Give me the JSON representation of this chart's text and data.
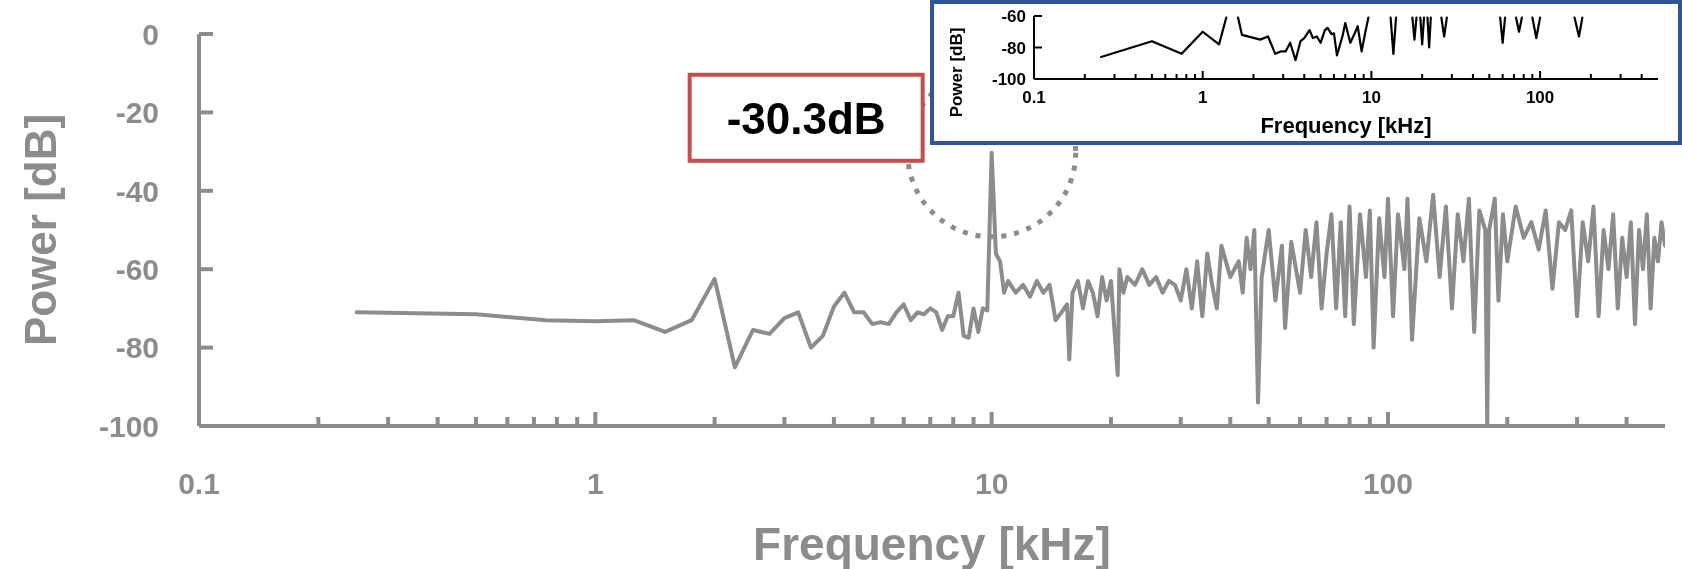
{
  "chart_data": [
    {
      "type": "line",
      "xlabel": "Frequency [kHz]",
      "ylabel": "Power [dB]",
      "log": "x",
      "x": [
        0.25,
        0.5,
        0.75,
        1,
        1.25,
        1.5,
        1.75,
        2,
        2.25,
        2.5,
        2.75,
        3,
        3.25,
        3.5,
        3.75,
        4,
        4.25,
        4.5,
        4.75,
        5,
        5.25,
        5.5,
        5.75,
        6,
        6.25,
        6.5,
        6.75,
        7,
        7.25,
        7.5,
        7.75,
        8,
        8.25,
        8.5,
        8.75,
        9,
        9.25,
        9.5,
        9.75,
        10,
        10.25,
        10.5,
        10.75,
        11,
        11.5,
        12,
        12.5,
        13,
        13.5,
        14,
        14.5,
        15,
        15.5,
        15.7,
        16,
        16.5,
        17,
        17.5,
        18,
        18.5,
        19,
        19.5,
        20,
        20.8,
        21,
        21.5,
        22,
        23,
        24,
        25,
        26,
        27,
        28,
        29,
        30,
        31,
        32,
        33,
        34,
        35,
        36,
        37,
        38,
        40,
        42,
        43,
        44,
        45,
        46,
        47,
        48,
        50,
        52,
        54,
        55,
        57,
        60,
        62,
        64,
        66,
        68,
        70,
        72,
        74,
        76,
        78,
        80,
        82,
        85,
        88,
        90,
        92,
        95,
        98,
        100,
        103,
        106,
        110,
        112,
        115,
        120,
        125,
        130,
        135,
        140,
        145,
        150,
        155,
        160,
        165,
        170,
        176,
        178,
        180,
        186,
        190,
        195,
        200,
        210,
        220,
        230,
        240,
        250,
        260,
        270,
        280,
        290,
        300,
        310,
        320,
        330,
        340,
        350,
        360,
        370,
        380,
        390,
        400,
        410,
        420,
        430,
        440,
        450,
        460,
        470,
        480,
        490,
        500
      ],
      "series": [
        {
          "color": "#8c8c8c",
          "values": [
            -71,
            -71.5,
            -73,
            -73.3,
            -73,
            -76,
            -73,
            -62.5,
            -85,
            -75.5,
            -76.5,
            -72.5,
            -71,
            -80,
            -77,
            -69.5,
            -66,
            -71,
            -71,
            -74,
            -73.5,
            -74,
            -71,
            -69,
            -73,
            -71,
            -71.5,
            -70,
            -71,
            -75.5,
            -72,
            -72,
            -66,
            -77,
            -77.5,
            -70,
            -76,
            -70,
            -70.5,
            -30.3,
            -56,
            -58,
            -66,
            -63,
            -66,
            -64,
            -67,
            -63,
            -66,
            -64,
            -73,
            -71,
            -69,
            -83,
            -66,
            -63,
            -70,
            -63,
            -66,
            -72,
            -62,
            -68,
            -63,
            -87,
            -60,
            -66,
            -62,
            -64,
            -60,
            -64,
            -62,
            -66,
            -63,
            -64,
            -68,
            -60,
            -70,
            -58,
            -72,
            -56,
            -64,
            -70,
            -54,
            -62,
            -58,
            -66,
            -52,
            -60,
            -50,
            -94,
            -62,
            -50,
            -68,
            -54,
            -75,
            -53,
            -66,
            -50,
            -62,
            -48,
            -70,
            -56,
            -46,
            -70,
            -48,
            -72,
            -44,
            -74,
            -46,
            -62,
            -45,
            -80,
            -47,
            -62,
            -42,
            -72,
            -46,
            -60,
            -42,
            -78,
            -47,
            -58,
            -41,
            -62,
            -44,
            -70,
            -46,
            -58,
            -42,
            -76,
            -45,
            -50,
            -100,
            -50,
            -42,
            -68,
            -46,
            -58,
            -44,
            -52,
            -48,
            -55,
            -45,
            -65,
            -48,
            -50,
            -45,
            -72,
            -48,
            -58,
            -44,
            -72,
            -50,
            -60,
            -46,
            -70,
            -52,
            -62,
            -48,
            -74,
            -50,
            -60,
            -46,
            -70,
            -52,
            -58,
            -48,
            -54
          ]
        }
      ],
      "xlim": [
        0.1,
        500
      ],
      "xticks": [
        0.1,
        {
          "value": 0.2,
          "label": null
        },
        {
          "value": 0.3,
          "label": null
        },
        {
          "value": 0.4,
          "label": null
        },
        {
          "value": 0.5,
          "label": null
        },
        {
          "value": 0.6,
          "label": null
        },
        {
          "value": 0.7,
          "label": null
        },
        {
          "value": 0.8,
          "label": null
        },
        {
          "value": 0.9,
          "label": null
        },
        1,
        {
          "value": 2,
          "label": null
        },
        {
          "value": 3,
          "label": null
        },
        {
          "value": 4,
          "label": null
        },
        {
          "value": 5,
          "label": null
        },
        {
          "value": 6,
          "label": null
        },
        {
          "value": 7,
          "label": null
        },
        {
          "value": 8,
          "label": null
        },
        {
          "value": 9,
          "label": null
        },
        10,
        {
          "value": 20,
          "label": null
        },
        {
          "value": 30,
          "label": null
        },
        {
          "value": 40,
          "label": null
        },
        {
          "value": 50,
          "label": null
        },
        {
          "value": 60,
          "label": null
        },
        {
          "value": 70,
          "label": null
        },
        {
          "value": 80,
          "label": null
        },
        {
          "value": 90,
          "label": null
        },
        100,
        {
          "value": 200,
          "label": null
        },
        {
          "value": 300,
          "label": null
        },
        {
          "value": 400,
          "label": null
        }
      ],
      "ylim": [
        -100,
        0
      ],
      "yticks": [
        -100,
        -80,
        -60,
        -40,
        -20,
        0
      ],
      "annotations": [
        {
          "text": "-30.3dB",
          "x": 10,
          "y": -30.3
        }
      ]
    },
    {
      "type": "line",
      "xlabel": "Frequency [kHz]",
      "ylabel": "Power [dB]",
      "log": "x",
      "x": [
        0.25,
        0.5,
        0.75,
        1,
        1.25,
        1.38,
        1.5,
        1.62,
        1.71,
        2.19,
        2.44,
        2.69,
        2.9,
        3.1,
        3.3,
        3.55,
        3.8,
        4,
        4.3,
        4.5,
        4.75,
        5,
        5.3,
        5.5,
        5.8,
        6,
        6.25,
        6.75,
        7,
        7.5,
        8,
        8.3,
        8.75,
        9.2,
        9.6,
        11,
        13,
        13.5,
        14,
        16,
        17.5,
        18,
        18.5,
        19,
        19.5,
        20,
        20.5,
        21,
        21.5,
        22,
        22.5,
        24,
        26,
        27,
        28,
        40,
        58,
        60,
        62,
        68,
        72,
        75,
        78,
        85,
        90,
        95,
        100,
        130,
        160,
        170,
        178
      ],
      "series": [
        {
          "color": "#000000",
          "values": [
            -86,
            -76,
            -84,
            -70,
            -78,
            -61,
            null,
            -61,
            -72,
            -75,
            -73,
            -84,
            -82.5,
            -82.5,
            -77,
            -88,
            -76,
            -74,
            -69,
            -74,
            -73,
            -77,
            -69,
            -67.5,
            -71.5,
            -71,
            -85,
            -72.5,
            -64.5,
            -77,
            -70.5,
            -66.5,
            -82.5,
            -70.5,
            -61,
            null,
            -61,
            -84,
            -61,
            null,
            -61,
            -75,
            -61,
            null,
            -61,
            -78,
            -61,
            null,
            -61,
            -80,
            -61,
            null,
            -61,
            -73,
            -61,
            null,
            -61,
            -77,
            -61,
            null,
            -61,
            -70,
            -61,
            null,
            -61,
            -74,
            -61,
            null,
            -61,
            -73,
            -61
          ]
        }
      ],
      "xlim": [
        0.1,
        500
      ],
      "xticks": [
        0.1,
        {
          "value": 0.2,
          "label": null
        },
        {
          "value": 0.3,
          "label": null
        },
        {
          "value": 0.4,
          "label": null
        },
        {
          "value": 0.5,
          "label": null
        },
        {
          "value": 0.6,
          "label": null
        },
        {
          "value": 0.7,
          "label": null
        },
        {
          "value": 0.8,
          "label": null
        },
        {
          "value": 0.9,
          "label": null
        },
        1,
        {
          "value": 2,
          "label": null
        },
        {
          "value": 3,
          "label": null
        },
        {
          "value": 4,
          "label": null
        },
        {
          "value": 5,
          "label": null
        },
        {
          "value": 6,
          "label": null
        },
        {
          "value": 7,
          "label": null
        },
        {
          "value": 8,
          "label": null
        },
        {
          "value": 9,
          "label": null
        },
        10,
        {
          "value": 20,
          "label": null
        },
        {
          "value": 30,
          "label": null
        },
        {
          "value": 40,
          "label": null
        },
        {
          "value": 50,
          "label": null
        },
        {
          "value": 60,
          "label": null
        },
        {
          "value": 70,
          "label": null
        },
        {
          "value": 80,
          "label": null
        },
        {
          "value": 90,
          "label": null
        },
        100,
        {
          "value": 200,
          "label": null
        },
        {
          "value": 300,
          "label": null
        },
        {
          "value": 400,
          "label": null
        }
      ],
      "ylim": [
        -100,
        -60
      ],
      "yticks": [
        -100,
        -80,
        -60
      ]
    }
  ]
}
